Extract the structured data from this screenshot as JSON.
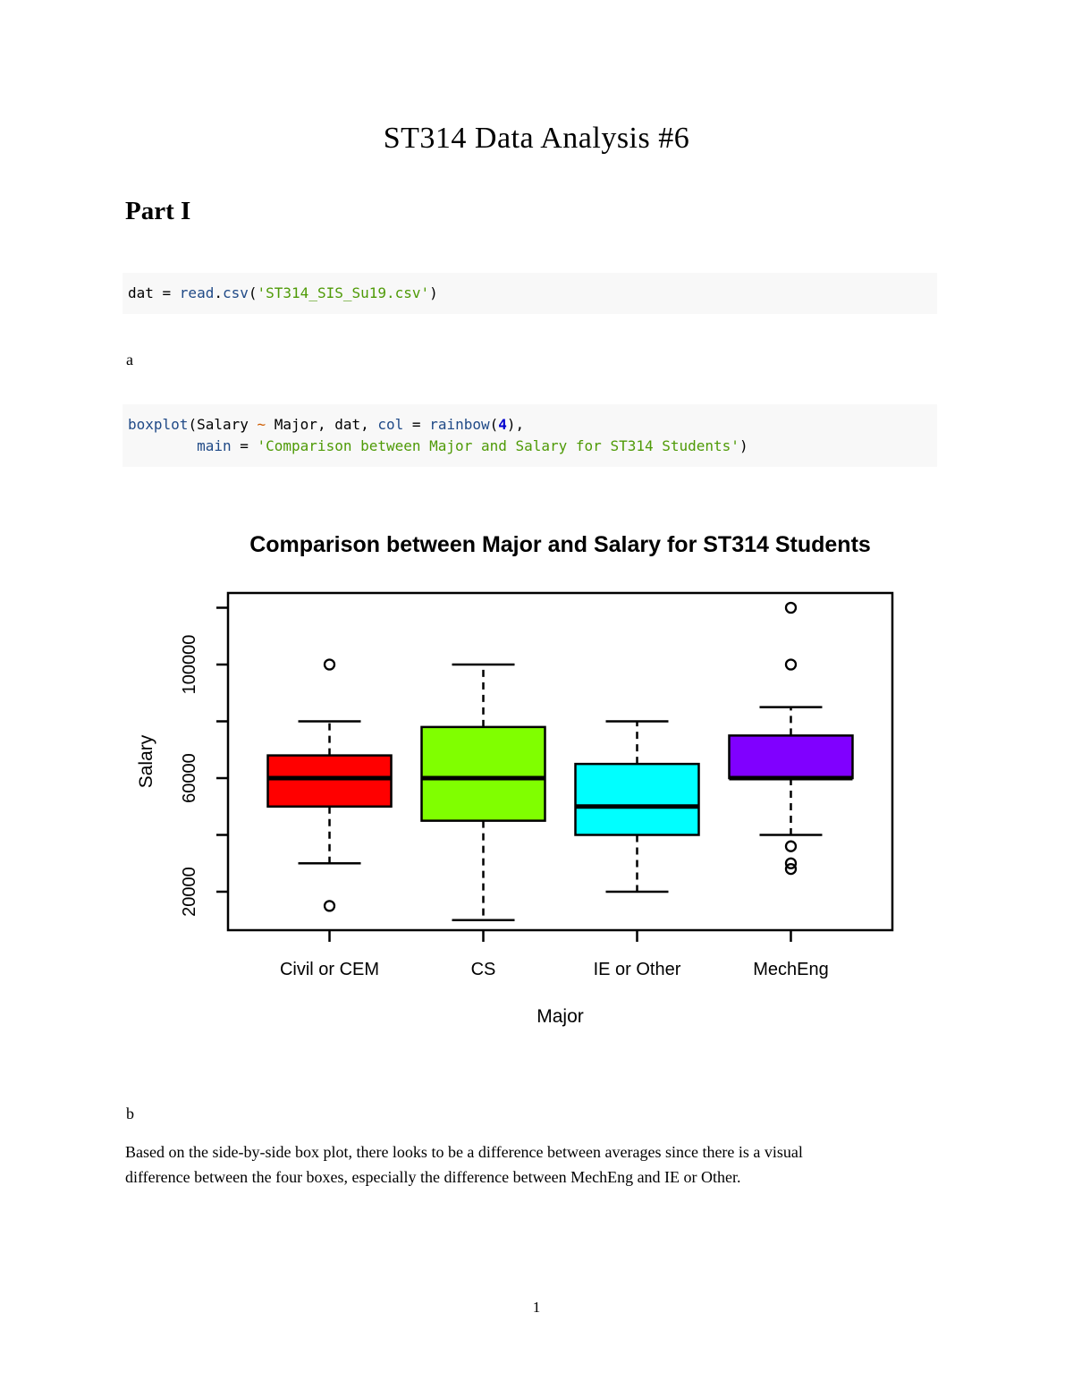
{
  "document": {
    "title": "ST314 Data Analysis #6",
    "section_heading": "Part I",
    "label_a": "a",
    "label_b": "b",
    "paragraph_lines": [
      "Based on the side-by-side box plot, there looks to be a difference between averages since there is a visual",
      "difference between the four boxes, especially the difference between MechEng and IE or Other."
    ],
    "page_number": "1"
  },
  "code": {
    "block1": [
      [
        {
          "text": "dat = ",
          "type": "plain"
        },
        {
          "text": "read",
          "type": "function"
        },
        {
          "text": ".",
          "type": "plain"
        },
        {
          "text": "csv",
          "type": "function"
        },
        {
          "text": "(",
          "type": "plain"
        },
        {
          "text": "'ST314_SIS_Su19.csv'",
          "type": "string"
        },
        {
          "text": ")",
          "type": "plain"
        }
      ]
    ],
    "block2": [
      [
        {
          "text": "boxplot",
          "type": "function"
        },
        {
          "text": "(Salary ",
          "type": "plain"
        },
        {
          "text": "~",
          "type": "operator"
        },
        {
          "text": " Major, dat, ",
          "type": "plain"
        },
        {
          "text": "col",
          "type": "function"
        },
        {
          "text": " = ",
          "type": "plain"
        },
        {
          "text": "rainbow",
          "type": "function"
        },
        {
          "text": "(",
          "type": "plain"
        },
        {
          "text": "4",
          "type": "number"
        },
        {
          "text": "),",
          "type": "plain"
        }
      ],
      [
        {
          "text": "        ",
          "type": "plain"
        },
        {
          "text": "main",
          "type": "function"
        },
        {
          "text": " = ",
          "type": "plain"
        },
        {
          "text": "'Comparison between Major and Salary for ST314 Students'",
          "type": "string"
        },
        {
          "text": ")",
          "type": "plain"
        }
      ]
    ]
  },
  "colors": {
    "code_background": "#f8f8f8",
    "code_function": "#204a87",
    "code_string": "#4e9a06",
    "code_number": "#0000cf",
    "code_operator": "#ce5c00",
    "text": "#000000"
  },
  "chart_data": {
    "type": "boxplot",
    "title": "Comparison between Major and Salary for ST314 Students",
    "xlabel": "Major",
    "ylabel": "Salary",
    "categories": [
      "Civil or CEM",
      "CS",
      "IE or Other",
      "MechEng"
    ],
    "series": [
      {
        "name": "Civil or CEM",
        "color": "#FF0000",
        "whisker_low": 30000,
        "q1": 50000,
        "median": 60000,
        "q3": 68000,
        "whisker_high": 80000,
        "outliers": [
          15000,
          100000
        ]
      },
      {
        "name": "CS",
        "color": "#80FF00",
        "whisker_low": 10000,
        "q1": 45000,
        "median": 60000,
        "q3": 78000,
        "whisker_high": 100000,
        "outliers": []
      },
      {
        "name": "IE or Other",
        "color": "#00FFFF",
        "whisker_low": 20000,
        "q1": 40000,
        "median": 50000,
        "q3": 65000,
        "whisker_high": 80000,
        "outliers": []
      },
      {
        "name": "MechEng",
        "color": "#8000FF",
        "whisker_low": 40000,
        "q1": 60000,
        "median": 60000,
        "q3": 75000,
        "whisker_high": 85000,
        "outliers": [
          28000,
          30000,
          36000,
          100000,
          120000
        ]
      }
    ],
    "y_ticks": [
      20000,
      40000,
      60000,
      80000,
      100000,
      120000
    ],
    "y_tick_labels": [
      "20000",
      "60000",
      "100000"
    ],
    "y_labeled_values": [
      20000,
      60000,
      100000
    ],
    "ylim": [
      6500,
      125500
    ],
    "grid": false,
    "legend": false
  }
}
